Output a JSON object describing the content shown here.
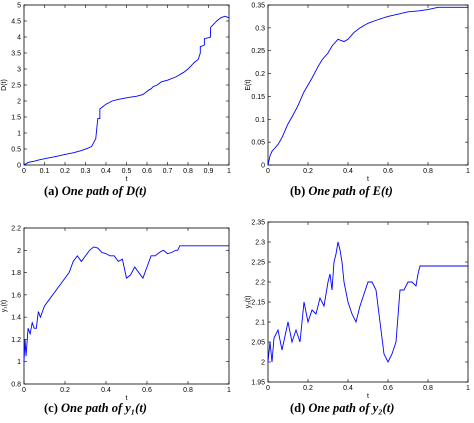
{
  "panels": [
    {
      "id": "a",
      "caption": {
        "label": "(a)",
        "text": "One path of",
        "math": "D(t)"
      },
      "chart_data": {
        "type": "line",
        "title": "",
        "xlabel": "t",
        "ylabel": "D(t)",
        "xlim": [
          0,
          1
        ],
        "ylim": [
          0,
          5
        ],
        "xticks": [
          "0",
          "0.1",
          "0.2",
          "0.3",
          "0.4",
          "0.5",
          "0.6",
          "0.7",
          "0.8",
          "0.9",
          "1"
        ],
        "yticks": [
          "0",
          "0.5",
          "1",
          "1.5",
          "2",
          "2.5",
          "3",
          "3.5",
          "4",
          "4.5",
          "5"
        ],
        "series": [
          {
            "color": "#0000ff",
            "x": [
              0,
              0.02,
              0.05,
              0.08,
              0.12,
              0.16,
              0.2,
              0.24,
              0.28,
              0.31,
              0.33,
              0.34,
              0.35,
              0.36,
              0.37,
              0.37,
              0.38,
              0.4,
              0.43,
              0.46,
              0.5,
              0.55,
              0.58,
              0.6,
              0.61,
              0.62,
              0.63,
              0.65,
              0.66,
              0.67,
              0.7,
              0.74,
              0.78,
              0.8,
              0.83,
              0.85,
              0.86,
              0.86,
              0.87,
              0.88,
              0.88,
              0.9,
              0.91,
              0.91,
              0.94,
              0.96,
              0.98,
              1.0
            ],
            "y": [
              0,
              0.08,
              0.12,
              0.17,
              0.22,
              0.27,
              0.33,
              0.38,
              0.45,
              0.52,
              0.58,
              0.7,
              0.82,
              1.45,
              1.45,
              1.75,
              1.8,
              1.9,
              2.0,
              2.05,
              2.1,
              2.15,
              2.2,
              2.3,
              2.35,
              2.38,
              2.45,
              2.5,
              2.55,
              2.6,
              2.65,
              2.75,
              2.9,
              3.0,
              3.2,
              3.3,
              3.5,
              3.7,
              3.72,
              3.75,
              3.95,
              3.98,
              4.0,
              4.3,
              4.5,
              4.6,
              4.65,
              4.6
            ]
          }
        ],
        "grid": false,
        "legend": "none"
      }
    },
    {
      "id": "b",
      "caption": {
        "label": "(b)",
        "text": "One path of",
        "math": "E(t)"
      },
      "chart_data": {
        "type": "line",
        "title": "",
        "xlabel": "t",
        "ylabel": "E(t)",
        "xlim": [
          0,
          1
        ],
        "ylim": [
          0,
          0.35
        ],
        "xticks": [
          "0",
          "0.2",
          "0.4",
          "0.6",
          "0.8",
          "1"
        ],
        "yticks": [
          "0",
          "0.05",
          "0.1",
          "0.15",
          "0.2",
          "0.25",
          "0.3",
          "0.35"
        ],
        "series": [
          {
            "color": "#0000ff",
            "x": [
              0,
              0.005,
              0.01,
              0.02,
              0.03,
              0.05,
              0.07,
              0.1,
              0.12,
              0.15,
              0.18,
              0.2,
              0.22,
              0.25,
              0.27,
              0.3,
              0.32,
              0.35,
              0.38,
              0.4,
              0.43,
              0.46,
              0.5,
              0.55,
              0.6,
              0.65,
              0.7,
              0.75,
              0.8,
              0.85,
              0.9,
              1.0
            ],
            "y": [
              0,
              0.01,
              0.02,
              0.03,
              0.035,
              0.045,
              0.06,
              0.09,
              0.105,
              0.13,
              0.16,
              0.175,
              0.19,
              0.215,
              0.23,
              0.245,
              0.26,
              0.275,
              0.27,
              0.275,
              0.29,
              0.3,
              0.31,
              0.318,
              0.325,
              0.33,
              0.335,
              0.337,
              0.34,
              0.345,
              0.345,
              0.345
            ]
          }
        ],
        "grid": false,
        "legend": "none"
      }
    },
    {
      "id": "c",
      "caption": {
        "label": "(c)",
        "text": "One path of",
        "math": "y₁(t)"
      },
      "chart_data": {
        "type": "line",
        "title": "",
        "xlabel": "t",
        "ylabel": "y₁(t)",
        "xlim": [
          0,
          1
        ],
        "ylim": [
          0.8,
          2.2
        ],
        "xticks": [
          "0",
          "0.2",
          "0.4",
          "0.6",
          "0.8",
          "1"
        ],
        "yticks": [
          "0.8",
          "1",
          "1.2",
          "1.4",
          "1.6",
          "1.8",
          "2",
          "2.2"
        ],
        "series": [
          {
            "color": "#0000ff",
            "x": [
              0,
              0.005,
              0.01,
              0.02,
              0.03,
              0.04,
              0.05,
              0.06,
              0.07,
              0.08,
              0.1,
              0.12,
              0.14,
              0.16,
              0.18,
              0.2,
              0.22,
              0.24,
              0.26,
              0.28,
              0.3,
              0.32,
              0.34,
              0.36,
              0.38,
              0.4,
              0.42,
              0.44,
              0.46,
              0.48,
              0.5,
              0.52,
              0.54,
              0.56,
              0.58,
              0.6,
              0.62,
              0.64,
              0.66,
              0.68,
              0.7,
              0.72,
              0.74,
              0.75,
              0.76,
              0.8,
              0.9,
              1.0
            ],
            "y": [
              1.0,
              1.2,
              1.05,
              1.3,
              1.25,
              1.35,
              1.3,
              1.3,
              1.45,
              1.4,
              1.5,
              1.55,
              1.6,
              1.65,
              1.7,
              1.75,
              1.8,
              1.9,
              1.95,
              1.9,
              1.95,
              2.0,
              2.03,
              2.02,
              1.98,
              1.97,
              1.95,
              1.95,
              1.9,
              1.92,
              1.75,
              1.78,
              1.85,
              1.8,
              1.75,
              1.85,
              1.95,
              1.95,
              1.98,
              2.0,
              1.97,
              1.98,
              2.0,
              2.0,
              2.04,
              2.04,
              2.04,
              2.04
            ]
          }
        ],
        "grid": false,
        "legend": "none"
      }
    },
    {
      "id": "d",
      "caption": {
        "label": "(d)",
        "text": "One path of",
        "math": "y₂(t)"
      },
      "chart_data": {
        "type": "line",
        "title": "",
        "xlabel": "t",
        "ylabel": "y₂(t)",
        "xlim": [
          0,
          1
        ],
        "ylim": [
          1.95,
          2.35
        ],
        "xticks": [
          "0",
          "0.2",
          "0.4",
          "0.6",
          "0.8",
          "1"
        ],
        "yticks": [
          "1.95",
          "2",
          "2.05",
          "2.1",
          "2.15",
          "2.2",
          "2.25",
          "2.3",
          "2.35"
        ],
        "series": [
          {
            "color": "#0000ff",
            "x": [
              0,
              0.01,
              0.02,
              0.03,
              0.05,
              0.07,
              0.1,
              0.12,
              0.14,
              0.16,
              0.18,
              0.2,
              0.22,
              0.24,
              0.26,
              0.28,
              0.3,
              0.31,
              0.32,
              0.33,
              0.34,
              0.35,
              0.36,
              0.37,
              0.38,
              0.4,
              0.42,
              0.44,
              0.46,
              0.48,
              0.5,
              0.52,
              0.54,
              0.56,
              0.58,
              0.6,
              0.62,
              0.64,
              0.66,
              0.68,
              0.7,
              0.72,
              0.74,
              0.75,
              0.76,
              0.8,
              0.9,
              1.0
            ],
            "y": [
              2.0,
              2.05,
              2.0,
              2.06,
              2.08,
              2.03,
              2.1,
              2.05,
              2.08,
              2.05,
              2.15,
              2.1,
              2.13,
              2.12,
              2.16,
              2.14,
              2.2,
              2.22,
              2.18,
              2.25,
              2.27,
              2.3,
              2.28,
              2.25,
              2.2,
              2.15,
              2.12,
              2.1,
              2.14,
              2.17,
              2.2,
              2.2,
              2.18,
              2.1,
              2.02,
              2.0,
              2.02,
              2.05,
              2.18,
              2.18,
              2.2,
              2.2,
              2.19,
              2.22,
              2.24,
              2.24,
              2.24,
              2.24
            ]
          }
        ],
        "grid": false,
        "legend": "none"
      }
    }
  ]
}
